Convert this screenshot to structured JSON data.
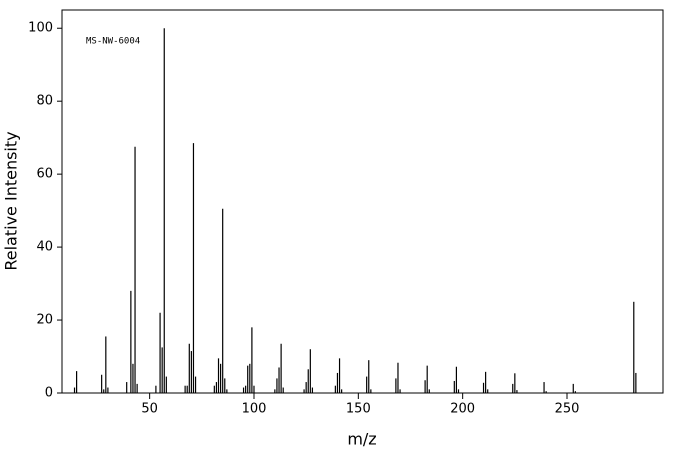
{
  "chart_data": {
    "type": "stem",
    "annotation": "MS-NW-6004",
    "x_label": "m/z",
    "y_label": "Relative Intensity",
    "color": "#000000",
    "x": [
      14,
      15,
      27,
      28,
      29,
      30,
      39,
      41,
      42,
      43,
      44,
      53,
      55,
      56,
      57,
      58,
      67,
      68,
      69,
      70,
      71,
      72,
      81,
      82,
      83,
      84,
      85,
      86,
      87,
      95,
      96,
      97,
      98,
      99,
      100,
      110,
      111,
      112,
      113,
      114,
      124,
      125,
      126,
      127,
      128,
      139,
      140,
      141,
      142,
      154,
      155,
      156,
      168,
      169,
      170,
      182,
      183,
      184,
      196,
      197,
      198,
      210,
      211,
      212,
      224,
      225,
      226,
      239,
      240,
      253,
      254,
      282,
      283
    ],
    "values": [
      1.5,
      6,
      5,
      1,
      15.5,
      1.5,
      3,
      28,
      8,
      67.5,
      2.5,
      2,
      22,
      12.5,
      100,
      4.5,
      2,
      2,
      13.5,
      11.5,
      68.5,
      4.5,
      2,
      3,
      9.5,
      8,
      50.5,
      4,
      1,
      1.5,
      2,
      7.5,
      8,
      18,
      2,
      1,
      4,
      7,
      13.5,
      1.5,
      1,
      3,
      6.5,
      12,
      1.5,
      2,
      5.5,
      9.5,
      1,
      4.5,
      9,
      1,
      4,
      8.3,
      1,
      3.5,
      7.5,
      1,
      3.3,
      7.2,
      1,
      2.8,
      5.8,
      1,
      2.5,
      5.4,
      0.8,
      3,
      0.5,
      2.5,
      0.5,
      25,
      5.5
    ],
    "xlim": [
      8,
      296
    ],
    "ylim": [
      0,
      105
    ],
    "xticks": [
      50,
      100,
      150,
      200,
      250
    ],
    "yticks": [
      0,
      20,
      40,
      60,
      80,
      100
    ]
  }
}
